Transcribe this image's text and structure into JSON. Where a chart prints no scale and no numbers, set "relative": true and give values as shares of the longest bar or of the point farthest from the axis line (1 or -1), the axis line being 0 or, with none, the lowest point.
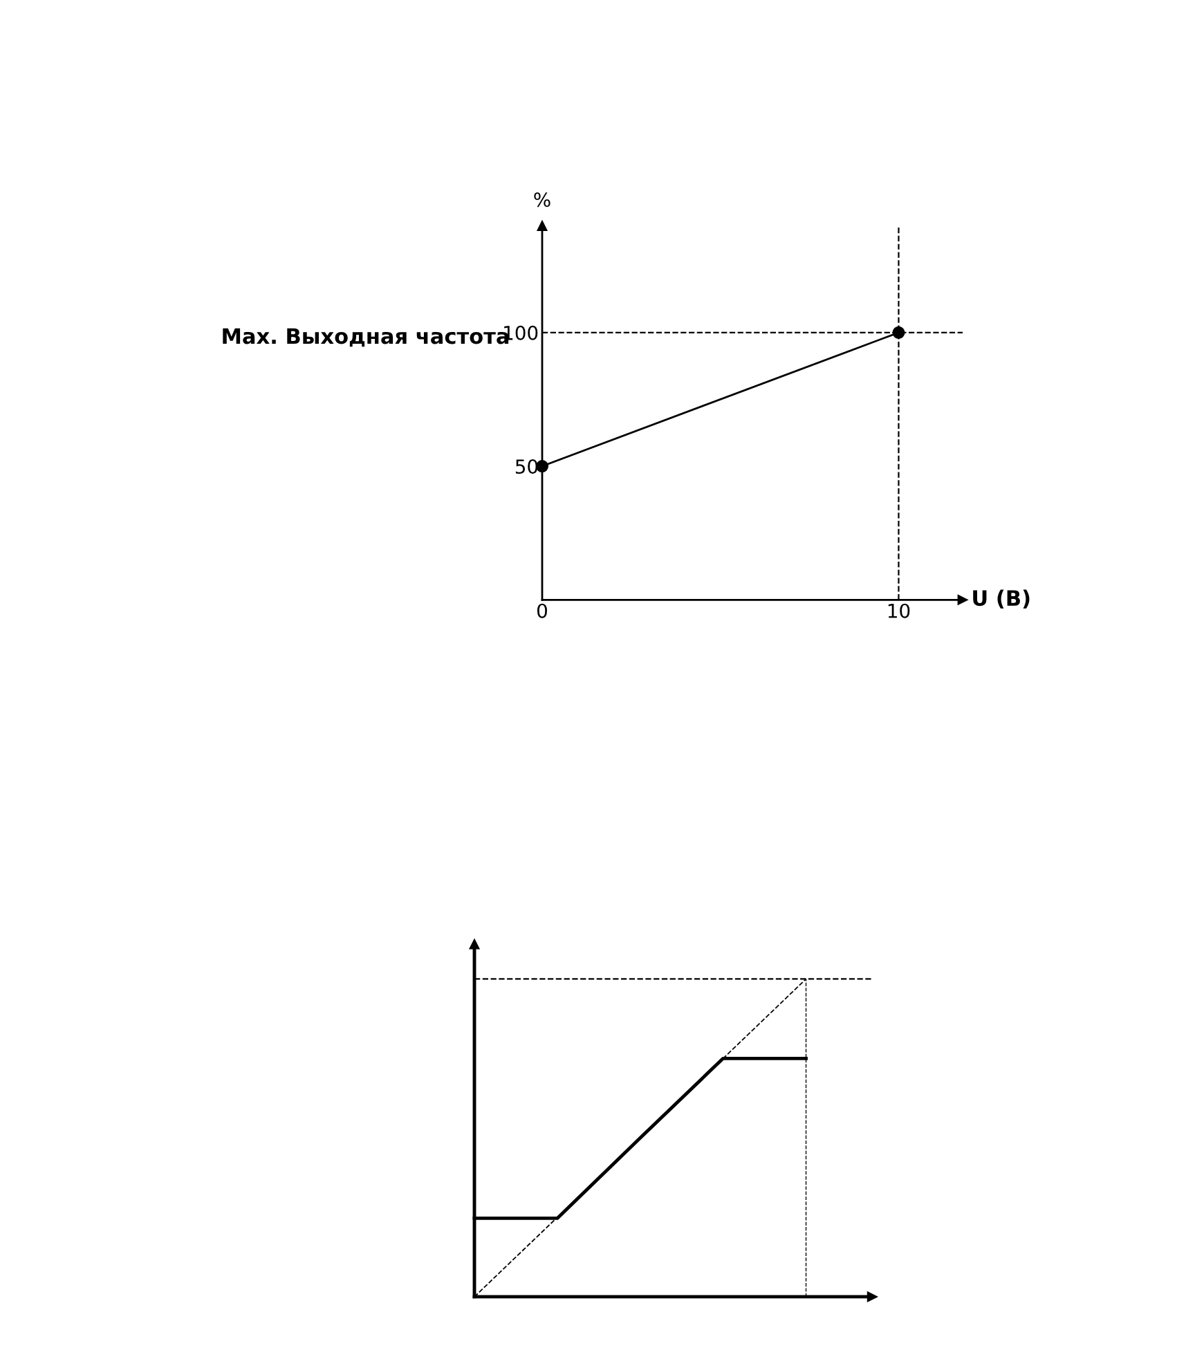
{
  "chart_data": [
    {
      "type": "line",
      "x": [
        0,
        10
      ],
      "xlim": [
        0,
        11.8
      ],
      "ylim": [
        0,
        140
      ],
      "xticks": [
        0,
        10
      ],
      "yticks": [
        50,
        100
      ],
      "xlabel": "U (В)",
      "ylabel": "%",
      "annotations": [
        "Max. Выходная частота"
      ],
      "marker": "circle",
      "grid": false,
      "series": [
        {
          "color": "#000000",
          "values": [
            50,
            100
          ]
        }
      ],
      "ref_lines": [
        {
          "axis": "y",
          "value": 100,
          "line_style": "dashed"
        },
        {
          "axis": "x",
          "value": 10,
          "line_style": "dashed"
        }
      ]
    },
    {
      "type": "line",
      "relative": true,
      "grid": false,
      "categories": [
        null,
        null,
        null,
        null,
        null
      ],
      "series": [
        {
          "color": "#000000",
          "values": [
            0.247,
            0.247,
            0.5,
            0.75,
            0.75
          ]
        },
        {
          "color": "#000000",
          "values": [
            0,
            0.25,
            0.5,
            0.75,
            1
          ],
          "line_style": "dashed"
        }
      ],
      "ref_lines": [
        {
          "axis": "y",
          "value": 1,
          "line_style": "dashed"
        }
      ]
    }
  ]
}
